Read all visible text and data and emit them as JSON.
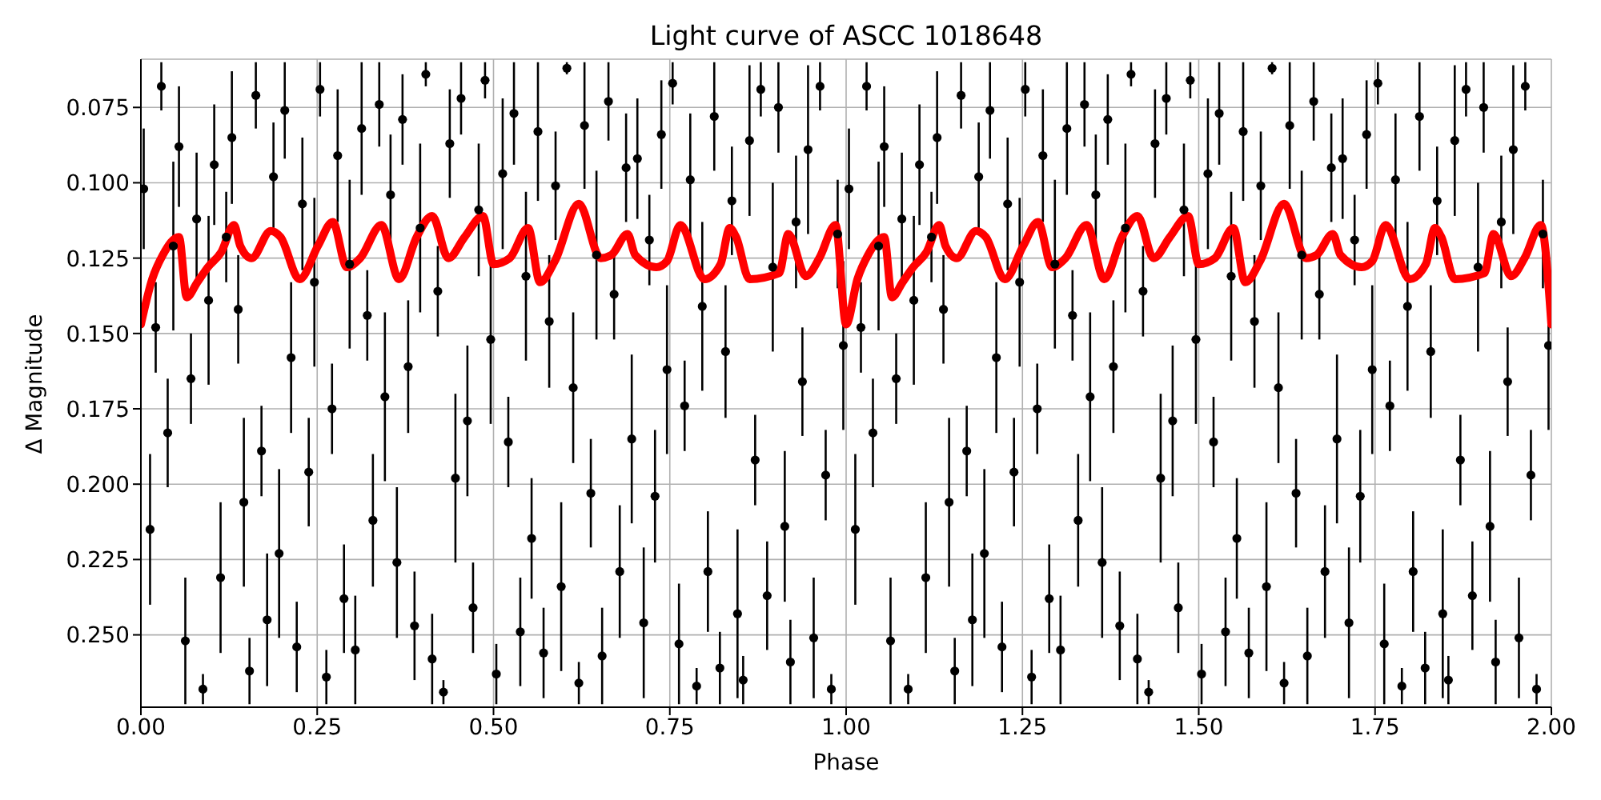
{
  "chart_data": {
    "type": "scatter",
    "title": "Light curve of ASCC 1018648",
    "xlabel": "Phase",
    "ylabel": "Δ Magnitude",
    "xlim": [
      0,
      2
    ],
    "xticks": [
      {
        "value": 0,
        "label": "0.00"
      },
      {
        "value": 0.25,
        "label": "0.25"
      },
      {
        "value": 0.5,
        "label": "0.50"
      },
      {
        "value": 0.75,
        "label": "0.75"
      },
      {
        "value": 1,
        "label": "1.00"
      },
      {
        "value": 1.25,
        "label": "1.25"
      },
      {
        "value": 1.5,
        "label": "1.50"
      },
      {
        "value": 1.75,
        "label": "1.75"
      },
      {
        "value": 2,
        "label": "2.00"
      }
    ],
    "ylim": [
      0.274,
      0.059
    ],
    "yticks": [
      0.075,
      {
        "value": 0.1,
        "label": "0.100"
      },
      0.125,
      {
        "value": 0.15,
        "label": "0.150"
      },
      0.175,
      {
        "value": 0.2,
        "label": "0.200"
      },
      0.225,
      {
        "value": 0.25,
        "label": "0.250"
      }
    ],
    "grid": true,
    "marker": "circle",
    "series": [
      {
        "color": "#000000",
        "x": [
          0.004,
          0.013,
          0.021,
          0.029,
          0.038,
          0.046,
          0.054,
          0.063,
          0.071,
          0.079,
          0.088,
          0.096,
          0.104,
          0.113,
          0.121,
          0.129,
          0.138,
          0.146,
          0.154,
          0.163,
          0.171,
          0.179,
          0.188,
          0.196,
          0.204,
          0.213,
          0.221,
          0.229,
          0.238,
          0.246,
          0.254,
          0.263,
          0.271,
          0.279,
          0.288,
          0.296,
          0.304,
          0.313,
          0.321,
          0.329,
          0.338,
          0.346,
          0.354,
          0.363,
          0.371,
          0.379,
          0.388,
          0.396,
          0.404,
          0.413,
          0.421,
          0.429,
          0.438,
          0.446,
          0.454,
          0.463,
          0.471,
          0.479,
          0.488,
          0.496,
          0.504,
          0.513,
          0.521,
          0.529,
          0.538,
          0.546,
          0.554,
          0.563,
          0.571,
          0.579,
          0.588,
          0.596,
          0.604,
          0.613,
          0.621,
          0.629,
          0.638,
          0.646,
          0.654,
          0.663,
          0.671,
          0.679,
          0.688,
          0.696,
          0.704,
          0.713,
          0.721,
          0.729,
          0.738,
          0.746,
          0.754,
          0.763,
          0.771,
          0.779,
          0.788,
          0.796,
          0.804,
          0.813,
          0.821,
          0.829,
          0.838,
          0.846,
          0.854,
          0.863,
          0.871,
          0.879,
          0.888,
          0.896,
          0.904,
          0.913,
          0.921,
          0.929,
          0.938,
          0.946,
          0.954,
          0.963,
          0.971,
          0.979,
          0.988,
          0.996,
          1.004,
          1.013,
          1.021,
          1.029,
          1.038,
          1.046,
          1.054,
          1.063,
          1.071,
          1.079,
          1.088,
          1.096,
          1.104,
          1.113,
          1.121,
          1.129,
          1.138,
          1.146,
          1.154,
          1.163,
          1.171,
          1.179,
          1.188,
          1.196,
          1.204,
          1.213,
          1.221,
          1.229,
          1.238,
          1.246,
          1.254,
          1.263,
          1.271,
          1.279,
          1.288,
          1.296,
          1.304,
          1.313,
          1.321,
          1.329,
          1.338,
          1.346,
          1.354,
          1.363,
          1.371,
          1.379,
          1.388,
          1.396,
          1.404,
          1.413,
          1.421,
          1.429,
          1.438,
          1.446,
          1.454,
          1.463,
          1.471,
          1.479,
          1.488,
          1.496,
          1.504,
          1.513,
          1.521,
          1.529,
          1.538,
          1.546,
          1.554,
          1.563,
          1.571,
          1.579,
          1.588,
          1.596,
          1.604,
          1.613,
          1.621,
          1.629,
          1.638,
          1.646,
          1.654,
          1.663,
          1.671,
          1.679,
          1.688,
          1.696,
          1.704,
          1.713,
          1.721,
          1.729,
          1.738,
          1.746,
          1.754,
          1.763,
          1.771,
          1.779,
          1.788,
          1.796,
          1.804,
          1.813,
          1.821,
          1.829,
          1.838,
          1.846,
          1.854,
          1.863,
          1.871,
          1.879,
          1.888,
          1.896,
          1.904,
          1.913,
          1.921,
          1.929,
          1.938,
          1.946,
          1.954,
          1.963,
          1.971,
          1.979,
          1.988,
          1.996
        ],
        "values": [
          0.102,
          0.215,
          0.148,
          0.068,
          0.183,
          0.121,
          0.088,
          0.252,
          0.165,
          0.112,
          0.268,
          0.139,
          0.094,
          0.231,
          0.118,
          0.085,
          0.142,
          0.206,
          0.262,
          0.071,
          0.189,
          0.245,
          0.098,
          0.223,
          0.076,
          0.158,
          0.254,
          0.107,
          0.196,
          0.133,
          0.069,
          0.264,
          0.175,
          0.091,
          0.238,
          0.127,
          0.255,
          0.082,
          0.144,
          0.212,
          0.074,
          0.171,
          0.104,
          0.226,
          0.079,
          0.161,
          0.247,
          0.115,
          0.064,
          0.258,
          0.136,
          0.269,
          0.087,
          0.198,
          0.072,
          0.179,
          0.241,
          0.109,
          0.066,
          0.152,
          0.263,
          0.097,
          0.186,
          0.077,
          0.249,
          0.131,
          0.218,
          0.083,
          0.256,
          0.146,
          0.101,
          0.234,
          0.062,
          0.168,
          0.266,
          0.081,
          0.203,
          0.124,
          0.257,
          0.073,
          0.137,
          0.229,
          0.095,
          0.185,
          0.092,
          0.246,
          0.119,
          0.204,
          0.084,
          0.162,
          0.067,
          0.253,
          0.174,
          0.099,
          0.267,
          0.141,
          0.229,
          0.078,
          0.261,
          0.156,
          0.106,
          0.243,
          0.265,
          0.086,
          0.192,
          0.069,
          0.237,
          0.128,
          0.075,
          0.214,
          0.259,
          0.113,
          0.166,
          0.089,
          0.251,
          0.068,
          0.197,
          0.268,
          0.117,
          0.154,
          0.102,
          0.215,
          0.148,
          0.068,
          0.183,
          0.121,
          0.088,
          0.252,
          0.165,
          0.112,
          0.268,
          0.139,
          0.094,
          0.231,
          0.118,
          0.085,
          0.142,
          0.206,
          0.262,
          0.071,
          0.189,
          0.245,
          0.098,
          0.223,
          0.076,
          0.158,
          0.254,
          0.107,
          0.196,
          0.133,
          0.069,
          0.264,
          0.175,
          0.091,
          0.238,
          0.127,
          0.255,
          0.082,
          0.144,
          0.212,
          0.074,
          0.171,
          0.104,
          0.226,
          0.079,
          0.161,
          0.247,
          0.115,
          0.064,
          0.258,
          0.136,
          0.269,
          0.087,
          0.198,
          0.072,
          0.179,
          0.241,
          0.109,
          0.066,
          0.152,
          0.263,
          0.097,
          0.186,
          0.077,
          0.249,
          0.131,
          0.218,
          0.083,
          0.256,
          0.146,
          0.101,
          0.234,
          0.062,
          0.168,
          0.266,
          0.081,
          0.203,
          0.124,
          0.257,
          0.073,
          0.137,
          0.229,
          0.095,
          0.185,
          0.092,
          0.246,
          0.119,
          0.204,
          0.084,
          0.162,
          0.067,
          0.253,
          0.174,
          0.099,
          0.267,
          0.141,
          0.229,
          0.078,
          0.261,
          0.156,
          0.106,
          0.243,
          0.265,
          0.086,
          0.192,
          0.069,
          0.237,
          0.128,
          0.075,
          0.214,
          0.259,
          0.113,
          0.166,
          0.089,
          0.251,
          0.068,
          0.197,
          0.268,
          0.117,
          0.154
        ],
        "errors": [
          0.02,
          0.025,
          0.015,
          0.008,
          0.018,
          0.028,
          0.02,
          0.021,
          0.015,
          0.022,
          0.005,
          0.028,
          0.02,
          0.025,
          0.015,
          0.022,
          0.018,
          0.028,
          0.011,
          0.011,
          0.015,
          0.022,
          0.018,
          0.028,
          0.016,
          0.025,
          0.015,
          0.022,
          0.018,
          0.028,
          0.009,
          0.009,
          0.015,
          0.022,
          0.018,
          0.028,
          0.018,
          0.022,
          0.015,
          0.022,
          0.014,
          0.028,
          0.02,
          0.025,
          0.015,
          0.022,
          0.018,
          0.028,
          0.004,
          0.015,
          0.015,
          0.004,
          0.018,
          0.028,
          0.012,
          0.025,
          0.015,
          0.022,
          0.006,
          0.028,
          0.01,
          0.025,
          0.015,
          0.017,
          0.018,
          0.028,
          0.02,
          0.023,
          0.015,
          0.022,
          0.018,
          0.028,
          0.002,
          0.025,
          0.007,
          0.021,
          0.018,
          0.028,
          0.016,
          0.013,
          0.015,
          0.022,
          0.018,
          0.028,
          0.02,
          0.025,
          0.015,
          0.022,
          0.018,
          0.028,
          0.007,
          0.02,
          0.015,
          0.022,
          0.006,
          0.028,
          0.02,
          0.018,
          0.012,
          0.022,
          0.018,
          0.028,
          0.008,
          0.025,
          0.015,
          0.009,
          0.018,
          0.028,
          0.015,
          0.025,
          0.014,
          0.022,
          0.018,
          0.028,
          0.02,
          0.008,
          0.015,
          0.005,
          0.018,
          0.028,
          0.02,
          0.025,
          0.015,
          0.008,
          0.018,
          0.028,
          0.02,
          0.021,
          0.015,
          0.022,
          0.005,
          0.028,
          0.02,
          0.025,
          0.015,
          0.022,
          0.018,
          0.028,
          0.011,
          0.011,
          0.015,
          0.022,
          0.018,
          0.028,
          0.016,
          0.025,
          0.015,
          0.022,
          0.018,
          0.028,
          0.009,
          0.009,
          0.015,
          0.022,
          0.018,
          0.028,
          0.018,
          0.022,
          0.015,
          0.022,
          0.014,
          0.028,
          0.02,
          0.025,
          0.015,
          0.022,
          0.018,
          0.028,
          0.004,
          0.015,
          0.015,
          0.004,
          0.018,
          0.028,
          0.012,
          0.025,
          0.015,
          0.022,
          0.006,
          0.028,
          0.01,
          0.025,
          0.015,
          0.017,
          0.018,
          0.028,
          0.02,
          0.023,
          0.015,
          0.022,
          0.018,
          0.028,
          0.002,
          0.025,
          0.007,
          0.021,
          0.018,
          0.028,
          0.016,
          0.013,
          0.015,
          0.022,
          0.018,
          0.028,
          0.02,
          0.025,
          0.015,
          0.022,
          0.018,
          0.028,
          0.007,
          0.02,
          0.015,
          0.022,
          0.006,
          0.028,
          0.02,
          0.018,
          0.012,
          0.022,
          0.018,
          0.028,
          0.008,
          0.025,
          0.015,
          0.009,
          0.018,
          0.028,
          0.015,
          0.025,
          0.014,
          0.022,
          0.018,
          0.028,
          0.02,
          0.008,
          0.015,
          0.005,
          0.018,
          0.028
        ]
      },
      {
        "type": "line",
        "color": "#ff0000",
        "marker": "none",
        "line_style": "solid",
        "x": [
          0,
          0.016,
          0.031,
          0.054,
          0.065,
          0.08,
          0.095,
          0.114,
          0.132,
          0.141,
          0.157,
          0.184,
          0.198,
          0.225,
          0.251,
          0.272,
          0.292,
          0.311,
          0.341,
          0.366,
          0.391,
          0.413,
          0.436,
          0.459,
          0.485,
          0.5,
          0.523,
          0.549,
          0.566,
          0.587,
          0.621,
          0.652,
          0.667,
          0.69,
          0.701,
          0.731,
          0.746,
          0.765,
          0.799,
          0.822,
          0.835,
          0.844,
          0.863,
          0.905,
          0.918,
          0.943,
          0.962,
          0.985,
          1,
          1.016,
          1.031,
          1.054,
          1.065,
          1.08,
          1.095,
          1.114,
          1.132,
          1.141,
          1.157,
          1.184,
          1.198,
          1.225,
          1.251,
          1.272,
          1.292,
          1.311,
          1.341,
          1.366,
          1.391,
          1.413,
          1.436,
          1.459,
          1.485,
          1.5,
          1.523,
          1.549,
          1.566,
          1.587,
          1.621,
          1.652,
          1.667,
          1.69,
          1.701,
          1.731,
          1.746,
          1.765,
          1.799,
          1.822,
          1.835,
          1.844,
          1.863,
          1.905,
          1.918,
          1.943,
          1.962,
          1.985,
          2
        ],
        "values": [
          0.147,
          0.132,
          0.124,
          0.118,
          0.138,
          0.133,
          0.128,
          0.123,
          0.114,
          0.121,
          0.125,
          0.116,
          0.118,
          0.132,
          0.121,
          0.113,
          0.128,
          0.125,
          0.114,
          0.132,
          0.118,
          0.111,
          0.125,
          0.118,
          0.111,
          0.127,
          0.125,
          0.115,
          0.133,
          0.126,
          0.107,
          0.125,
          0.124,
          0.117,
          0.124,
          0.128,
          0.126,
          0.114,
          0.132,
          0.127,
          0.115,
          0.118,
          0.132,
          0.13,
          0.117,
          0.131,
          0.125,
          0.114,
          0.147,
          0.132,
          0.124,
          0.118,
          0.138,
          0.133,
          0.128,
          0.123,
          0.114,
          0.121,
          0.125,
          0.116,
          0.118,
          0.132,
          0.121,
          0.113,
          0.128,
          0.125,
          0.114,
          0.132,
          0.118,
          0.111,
          0.125,
          0.118,
          0.111,
          0.127,
          0.125,
          0.115,
          0.133,
          0.126,
          0.107,
          0.125,
          0.124,
          0.117,
          0.124,
          0.128,
          0.126,
          0.114,
          0.132,
          0.127,
          0.115,
          0.118,
          0.132,
          0.13,
          0.117,
          0.131,
          0.125,
          0.114,
          0.147
        ]
      }
    ]
  }
}
